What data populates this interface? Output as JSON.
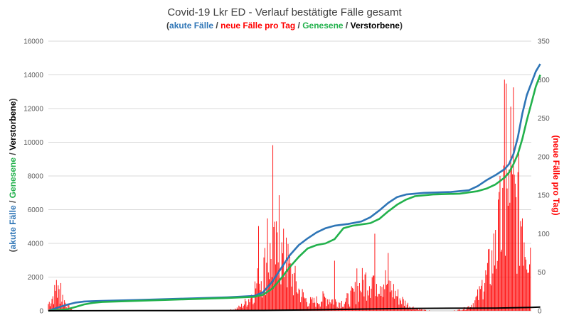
{
  "chart_data": {
    "type": "line",
    "title": "Covid-19 Lkr ED - Verlauf bestätigte Fälle gesamt",
    "subtitle": {
      "open": "(",
      "items": [
        {
          "text": "akute Fälle",
          "color": "#2e75b6"
        },
        {
          "text": " / ",
          "color": "#404040"
        },
        {
          "text": "neue Fälle pro Tag",
          "color": "#ff0000"
        },
        {
          "text": " / ",
          "color": "#404040"
        },
        {
          "text": "Genesene",
          "color": "#22b14c"
        },
        {
          "text": " / ",
          "color": "#404040"
        },
        {
          "text": "Verstorbene",
          "color": "#000000"
        }
      ],
      "close": ")"
    },
    "y_left": {
      "ticks": [
        "0",
        "2000",
        "4000",
        "6000",
        "8000",
        "10000",
        "12000",
        "14000",
        "16000"
      ],
      "ylim": [
        0,
        16000
      ],
      "label_parts": [
        {
          "text": "(",
          "color": "#404040"
        },
        {
          "text": "akute Fälle",
          "color": "#2e75b6"
        },
        {
          "text": " / ",
          "color": "#404040"
        },
        {
          "text": "Genesene",
          "color": "#22b14c"
        },
        {
          "text": " / ",
          "color": "#404040"
        },
        {
          "text": "Verstorbene",
          "color": "#000000"
        },
        {
          "text": ")",
          "color": "#404040"
        }
      ]
    },
    "y_right": {
      "ticks": [
        "0",
        "50",
        "100",
        "150",
        "200",
        "250",
        "300",
        "350"
      ],
      "ylim": [
        0,
        350
      ],
      "label": "(neue Fälle pro Tag)",
      "color": "#ff0000"
    },
    "x": {
      "n_days": 540,
      "tick_labels": []
    },
    "grid": true,
    "series": [
      {
        "name": "akute Fälle",
        "axis": "left",
        "color": "#2e75b6",
        "type": "line",
        "points": [
          [
            0,
            0
          ],
          [
            10,
            180
          ],
          [
            20,
            350
          ],
          [
            30,
            480
          ],
          [
            40,
            550
          ],
          [
            60,
            590
          ],
          [
            100,
            640
          ],
          [
            150,
            720
          ],
          [
            200,
            800
          ],
          [
            230,
            880
          ],
          [
            240,
            1100
          ],
          [
            250,
            1700
          ],
          [
            260,
            2500
          ],
          [
            270,
            3300
          ],
          [
            280,
            3900
          ],
          [
            290,
            4300
          ],
          [
            300,
            4650
          ],
          [
            310,
            4900
          ],
          [
            320,
            5050
          ],
          [
            335,
            5150
          ],
          [
            350,
            5300
          ],
          [
            360,
            5550
          ],
          [
            370,
            5950
          ],
          [
            380,
            6400
          ],
          [
            390,
            6750
          ],
          [
            400,
            6900
          ],
          [
            420,
            7000
          ],
          [
            450,
            7050
          ],
          [
            470,
            7150
          ],
          [
            480,
            7400
          ],
          [
            490,
            7750
          ],
          [
            500,
            8050
          ],
          [
            510,
            8400
          ],
          [
            515,
            8700
          ],
          [
            520,
            9300
          ],
          [
            525,
            10300
          ],
          [
            530,
            11700
          ],
          [
            535,
            12800
          ],
          [
            540,
            13500
          ],
          [
            545,
            14200
          ],
          [
            550,
            14650
          ]
        ]
      },
      {
        "name": "Genesene",
        "axis": "left",
        "color": "#22b14c",
        "type": "line",
        "points": [
          [
            0,
            0
          ],
          [
            20,
            80
          ],
          [
            30,
            220
          ],
          [
            40,
            380
          ],
          [
            50,
            470
          ],
          [
            60,
            520
          ],
          [
            100,
            590
          ],
          [
            150,
            680
          ],
          [
            200,
            760
          ],
          [
            230,
            830
          ],
          [
            240,
            950
          ],
          [
            250,
            1300
          ],
          [
            260,
            1900
          ],
          [
            270,
            2600
          ],
          [
            280,
            3200
          ],
          [
            290,
            3700
          ],
          [
            300,
            3900
          ],
          [
            310,
            4000
          ],
          [
            320,
            4250
          ],
          [
            330,
            4900
          ],
          [
            340,
            5050
          ],
          [
            360,
            5200
          ],
          [
            370,
            5450
          ],
          [
            380,
            5900
          ],
          [
            390,
            6300
          ],
          [
            400,
            6600
          ],
          [
            410,
            6800
          ],
          [
            430,
            6900
          ],
          [
            460,
            6950
          ],
          [
            480,
            7100
          ],
          [
            490,
            7250
          ],
          [
            500,
            7500
          ],
          [
            505,
            7700
          ],
          [
            510,
            7900
          ],
          [
            515,
            8200
          ],
          [
            520,
            8700
          ],
          [
            525,
            9300
          ],
          [
            530,
            10200
          ],
          [
            535,
            11300
          ],
          [
            540,
            12300
          ],
          [
            545,
            13300
          ],
          [
            550,
            14000
          ]
        ]
      },
      {
        "name": "Verstorbene",
        "axis": "left",
        "color": "#000000",
        "type": "line",
        "points": [
          [
            0,
            0
          ],
          [
            100,
            10
          ],
          [
            240,
            20
          ],
          [
            300,
            60
          ],
          [
            350,
            100
          ],
          [
            400,
            140
          ],
          [
            450,
            150
          ],
          [
            500,
            160
          ],
          [
            540,
            200
          ],
          [
            550,
            220
          ]
        ]
      },
      {
        "name": "neue Fälle pro Tag",
        "axis": "right",
        "color": "#ff0000",
        "type": "bar",
        "waves": [
          {
            "center": 10,
            "width": 10,
            "peak": 30
          },
          {
            "center": 255,
            "width": 25,
            "peak": 90
          },
          {
            "center": 310,
            "width": 15,
            "peak": 18
          },
          {
            "center": 365,
            "width": 28,
            "peak": 55
          },
          {
            "center": 520,
            "width": 28,
            "peak": 165
          }
        ],
        "spikes": [
          {
            "day": 9,
            "value": 40
          },
          {
            "day": 14,
            "value": 36
          },
          {
            "day": 235,
            "value": 110
          },
          {
            "day": 245,
            "value": 120
          },
          {
            "day": 251,
            "value": 215
          },
          {
            "day": 258,
            "value": 150
          },
          {
            "day": 266,
            "value": 95
          },
          {
            "day": 320,
            "value": 65
          },
          {
            "day": 345,
            "value": 55
          },
          {
            "day": 365,
            "value": 100
          },
          {
            "day": 380,
            "value": 75
          },
          {
            "day": 485,
            "value": 40
          },
          {
            "day": 500,
            "value": 105
          },
          {
            "day": 505,
            "value": 175
          },
          {
            "day": 510,
            "value": 300
          },
          {
            "day": 512,
            "value": 295
          },
          {
            "day": 517,
            "value": 265
          },
          {
            "day": 520,
            "value": 290
          },
          {
            "day": 525,
            "value": 180
          },
          {
            "day": 530,
            "value": 120
          },
          {
            "day": 540,
            "value": 55
          }
        ]
      }
    ]
  }
}
